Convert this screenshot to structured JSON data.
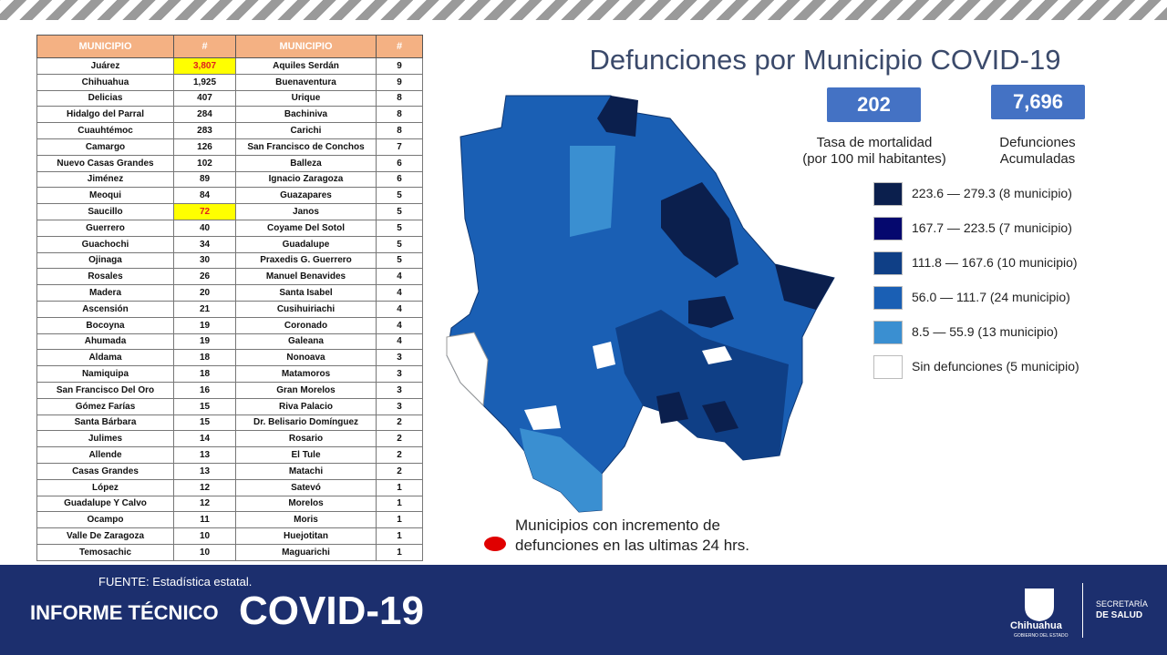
{
  "table": {
    "headers": [
      "MUNICIPIO",
      "#",
      "MUNICIPIO",
      "#"
    ],
    "rows": [
      [
        "Juárez",
        "3,807",
        "Aquiles Serdán",
        9
      ],
      [
        "Chihuahua",
        "1,925",
        "Buenaventura",
        9
      ],
      [
        "Delicias",
        407,
        "Urique",
        8
      ],
      [
        "Hidalgo del Parral",
        284,
        "Bachiniva",
        8
      ],
      [
        "Cuauhtémoc",
        283,
        "Carichi",
        8
      ],
      [
        "Camargo",
        126,
        "San Francisco de Conchos",
        7
      ],
      [
        "Nuevo Casas Grandes",
        102,
        "Balleza",
        6
      ],
      [
        "Jiménez",
        89,
        "Ignacio Zaragoza",
        6
      ],
      [
        "Meoqui",
        84,
        "Guazapares",
        5
      ],
      [
        "Saucillo",
        72,
        "Janos",
        5
      ],
      [
        "Guerrero",
        40,
        "Coyame Del Sotol",
        5
      ],
      [
        "Guachochi",
        34,
        "Guadalupe",
        5
      ],
      [
        "Ojinaga",
        30,
        "Praxedis G. Guerrero",
        5
      ],
      [
        "Rosales",
        26,
        "Manuel Benavides",
        4
      ],
      [
        "Madera",
        20,
        "Santa Isabel",
        4
      ],
      [
        "Ascensión",
        21,
        "Cusihuiriachi",
        4
      ],
      [
        "Bocoyna",
        19,
        "Coronado",
        4
      ],
      [
        "Ahumada",
        19,
        "Galeana",
        4
      ],
      [
        "Aldama",
        18,
        "Nonoava",
        3
      ],
      [
        "Namiquipa",
        18,
        "Matamoros",
        3
      ],
      [
        "San Francisco Del Oro",
        16,
        "Gran Morelos",
        3
      ],
      [
        "Gómez Farías",
        15,
        "Riva Palacio",
        3
      ],
      [
        "Santa Bárbara",
        15,
        "Dr. Belisario Domínguez",
        2
      ],
      [
        "Julimes",
        14,
        "Rosario",
        2
      ],
      [
        "Allende",
        13,
        "El Tule",
        2
      ],
      [
        "Casas Grandes",
        13,
        "Matachi",
        2
      ],
      [
        "López",
        12,
        "Satevó",
        1
      ],
      [
        "Guadalupe Y Calvo",
        12,
        "Morelos",
        1
      ],
      [
        "Ocampo",
        11,
        "Moris",
        1
      ],
      [
        "Valle De Zaragoza",
        10,
        "Huejotitan",
        1
      ],
      [
        "Temosachic",
        10,
        "Maguarichi",
        1
      ]
    ]
  },
  "title": "Defunciones por Municipio COVID-19",
  "stats": [
    {
      "value": "202",
      "caption": [
        "Tasa de mortalidad",
        "(por 100 mil habitantes)"
      ]
    },
    {
      "value": "7,696",
      "caption": [
        "Defunciones",
        "Acumuladas"
      ]
    }
  ],
  "legend": [
    {
      "label": "223.6 — 279.3 (8 municipio)",
      "color": "#0b1f4d"
    },
    {
      "label": "167.7 — 223.5 (7 municipio)",
      "color": "#05086e"
    },
    {
      "label": "111.8 — 167.6 (10 municipio)",
      "color": "#0f3f86"
    },
    {
      "label": "56.0 — 111.7 (24 municipio)",
      "color": "#1a5fb4"
    },
    {
      "label": "8.5 — 55.9 (13 municipio)",
      "color": "#3a8fd1"
    },
    {
      "label": "Sin defunciones (5 municipio)",
      "color": "#ffffff"
    }
  ],
  "note": [
    "Municipios con incremento de",
    "defunciones en las ultimas 24 hrs."
  ],
  "footer": {
    "source": "FUENTE: Estadística estatal.",
    "report": "INFORME TÉCNICO",
    "topic": "COVID-19",
    "logo": "Chihuahua",
    "logo_sub": "GOBIERNO DEL ESTADO",
    "ministry": [
      "SECRETARÍA",
      "DE SALUD"
    ]
  }
}
